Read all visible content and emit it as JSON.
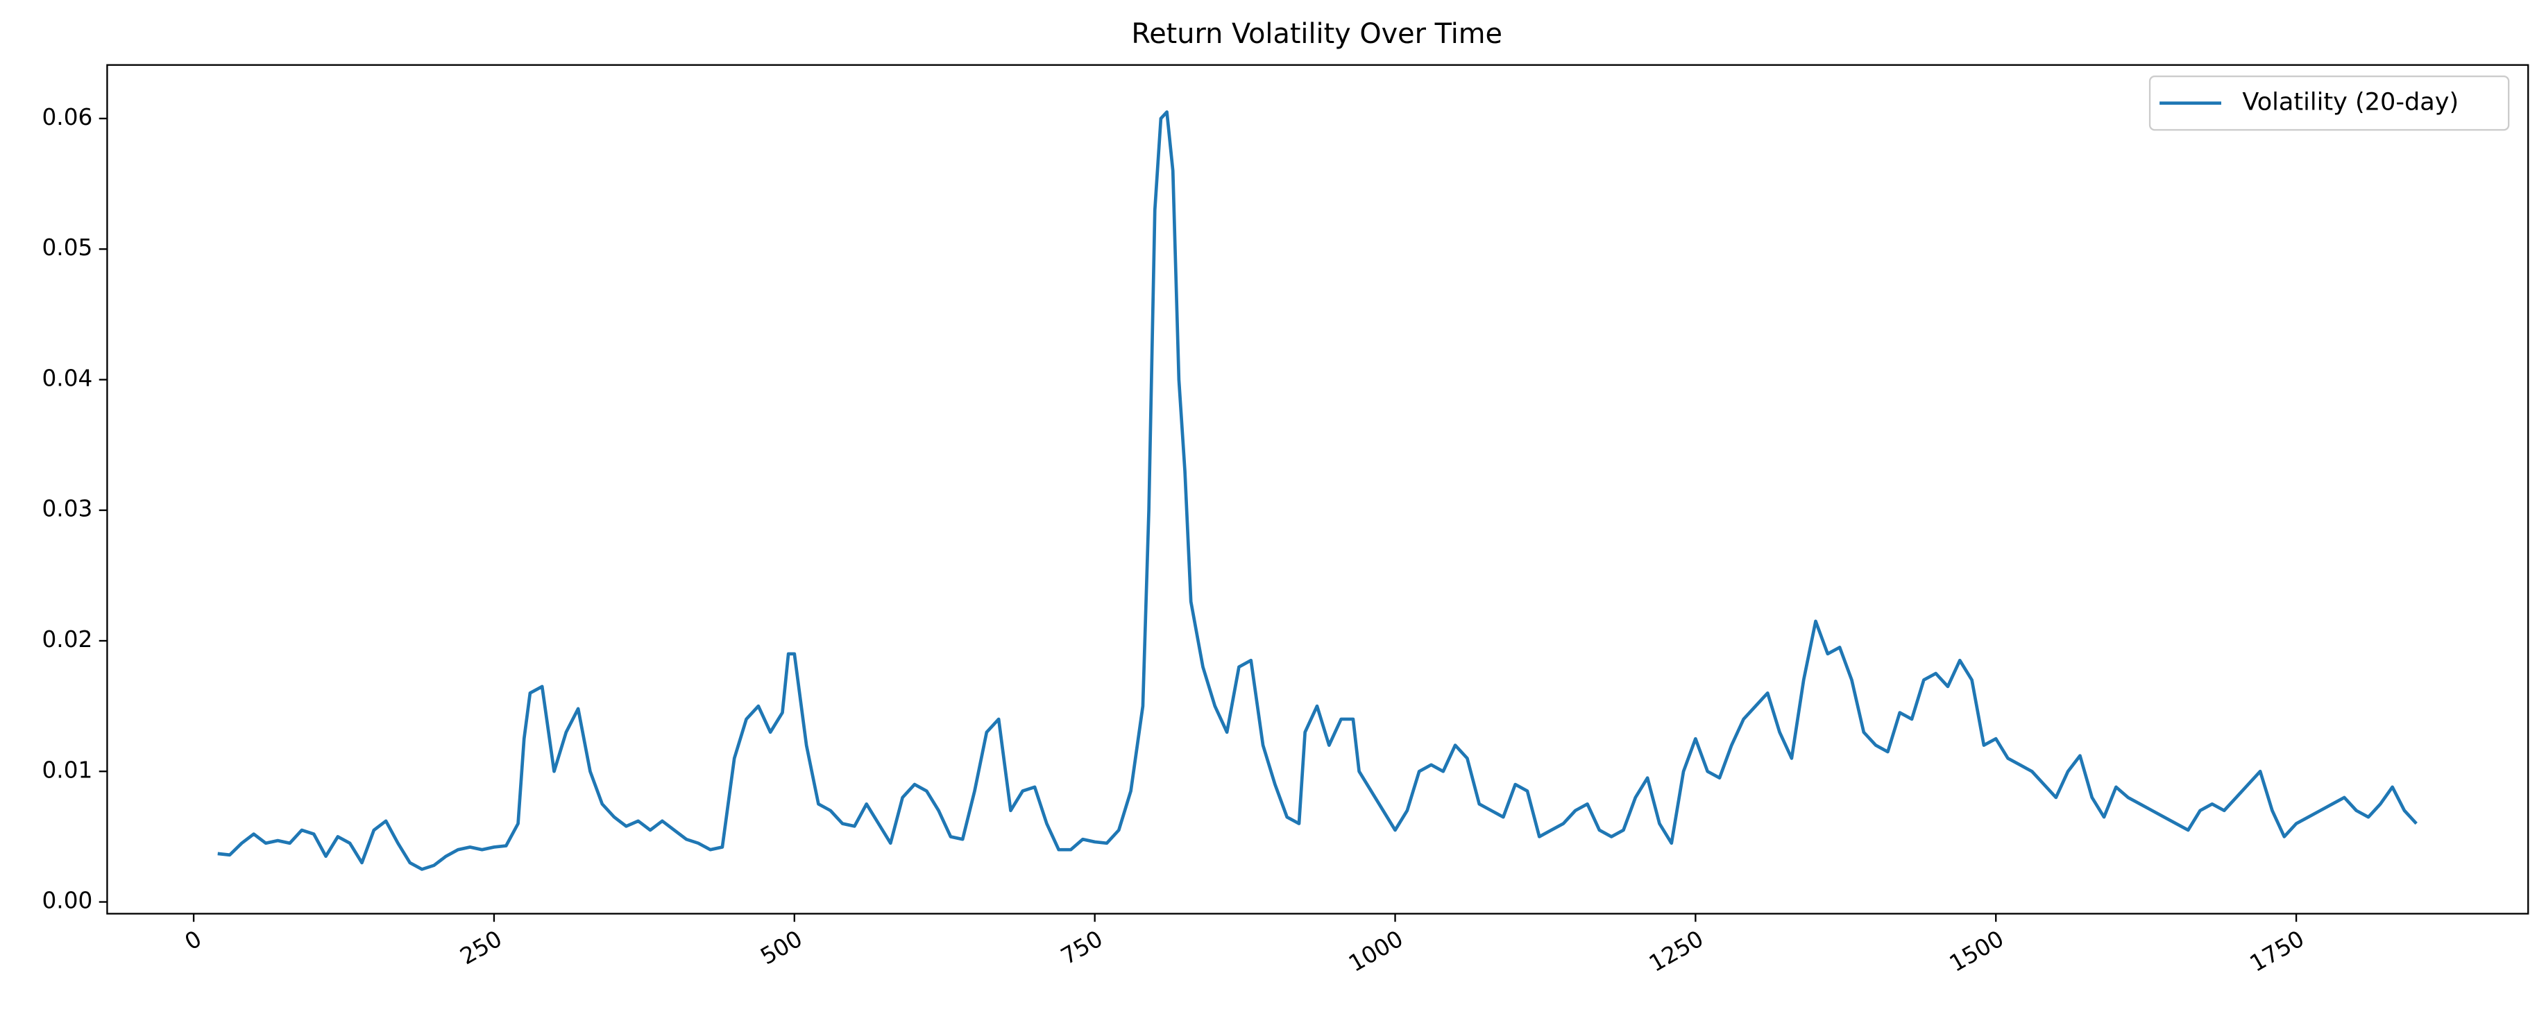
{
  "chart_data": {
    "type": "line",
    "title": "Return Volatility Over Time",
    "x": [
      20,
      30,
      40,
      50,
      60,
      70,
      80,
      90,
      100,
      110,
      120,
      130,
      140,
      150,
      160,
      170,
      180,
      190,
      200,
      210,
      220,
      230,
      240,
      250,
      260,
      270,
      275,
      280,
      290,
      300,
      310,
      320,
      330,
      340,
      350,
      360,
      370,
      380,
      390,
      400,
      410,
      420,
      430,
      440,
      450,
      460,
      470,
      480,
      490,
      495,
      500,
      510,
      520,
      530,
      540,
      550,
      560,
      570,
      580,
      590,
      600,
      610,
      620,
      630,
      640,
      650,
      660,
      670,
      680,
      690,
      700,
      710,
      720,
      730,
      740,
      750,
      760,
      770,
      780,
      790,
      795,
      800,
      805,
      810,
      815,
      820,
      825,
      830,
      840,
      850,
      860,
      870,
      880,
      890,
      900,
      910,
      920,
      925,
      935,
      945,
      955,
      965,
      970,
      980,
      990,
      1000,
      1010,
      1020,
      1030,
      1040,
      1050,
      1060,
      1070,
      1080,
      1090,
      1100,
      1110,
      1120,
      1130,
      1140,
      1150,
      1160,
      1170,
      1180,
      1190,
      1200,
      1210,
      1220,
      1230,
      1240,
      1250,
      1260,
      1270,
      1280,
      1290,
      1300,
      1310,
      1320,
      1330,
      1340,
      1350,
      1360,
      1370,
      1380,
      1390,
      1400,
      1410,
      1420,
      1430,
      1440,
      1450,
      1460,
      1470,
      1480,
      1490,
      1500,
      1510,
      1520,
      1530,
      1540,
      1550,
      1560,
      1570,
      1580,
      1590,
      1600,
      1610,
      1620,
      1630,
      1640,
      1650,
      1660,
      1670,
      1680,
      1690,
      1700,
      1710,
      1720,
      1730,
      1740,
      1750,
      1760,
      1770,
      1780,
      1790,
      1800,
      1810,
      1820,
      1830,
      1840,
      1850
    ],
    "series": [
      {
        "name": "Volatility (20-day)",
        "color": "#1f77b4",
        "values": [
          0.0037,
          0.0036,
          0.0045,
          0.0052,
          0.0045,
          0.0047,
          0.0045,
          0.0055,
          0.0052,
          0.0035,
          0.005,
          0.0045,
          0.003,
          0.0055,
          0.0062,
          0.0045,
          0.003,
          0.0025,
          0.0028,
          0.0035,
          0.004,
          0.0042,
          0.004,
          0.0042,
          0.0043,
          0.006,
          0.0125,
          0.016,
          0.0165,
          0.01,
          0.013,
          0.0148,
          0.01,
          0.0075,
          0.0065,
          0.0058,
          0.0062,
          0.0055,
          0.0062,
          0.0055,
          0.0048,
          0.0045,
          0.004,
          0.0042,
          0.011,
          0.014,
          0.015,
          0.013,
          0.0145,
          0.019,
          0.019,
          0.012,
          0.0075,
          0.007,
          0.006,
          0.0058,
          0.0075,
          0.006,
          0.0045,
          0.008,
          0.009,
          0.0085,
          0.007,
          0.005,
          0.0048,
          0.0085,
          0.013,
          0.014,
          0.007,
          0.0085,
          0.0088,
          0.006,
          0.004,
          0.004,
          0.0048,
          0.0046,
          0.0045,
          0.0055,
          0.0085,
          0.015,
          0.03,
          0.053,
          0.06,
          0.0605,
          0.056,
          0.04,
          0.033,
          0.023,
          0.018,
          0.015,
          0.013,
          0.018,
          0.0185,
          0.012,
          0.009,
          0.0065,
          0.006,
          0.013,
          0.015,
          0.012,
          0.014,
          0.014,
          0.01,
          0.0085,
          0.007,
          0.0055,
          0.007,
          0.01,
          0.0105,
          0.01,
          0.012,
          0.011,
          0.0075,
          0.007,
          0.0065,
          0.009,
          0.0085,
          0.005,
          0.0055,
          0.006,
          0.007,
          0.0075,
          0.0055,
          0.005,
          0.0055,
          0.008,
          0.0095,
          0.006,
          0.0045,
          0.01,
          0.0125,
          0.01,
          0.0095,
          0.012,
          0.014,
          0.015,
          0.016,
          0.013,
          0.011,
          0.017,
          0.0215,
          0.019,
          0.0195,
          0.017,
          0.013,
          0.012,
          0.0115,
          0.0145,
          0.014,
          0.017,
          0.0175,
          0.0165,
          0.0185,
          0.017,
          0.012,
          0.0125,
          0.011,
          0.0105,
          0.01,
          0.009,
          0.008,
          0.01,
          0.0112,
          0.008,
          0.0065,
          0.0088,
          0.008,
          0.0075,
          0.007,
          0.0065,
          0.006,
          0.0055,
          0.007,
          0.0075,
          0.007,
          0.008,
          0.009,
          0.01,
          0.007,
          0.005,
          0.006,
          0.0065,
          0.007,
          0.0075,
          0.008,
          0.007,
          0.0065,
          0.0075,
          0.0088,
          0.007,
          0.006
        ]
      }
    ],
    "xlim": [
      -72,
      1943
    ],
    "xticks": [
      0,
      250,
      500,
      750,
      1000,
      1250,
      1500,
      1750
    ],
    "ylim": [
      -0.0009,
      0.0641
    ],
    "yticks": [
      {
        "value": 0,
        "label": "0.00"
      },
      0.01,
      0.02,
      0.03,
      0.04,
      0.05,
      0.06
    ],
    "grid": false,
    "legend": "upper right"
  }
}
